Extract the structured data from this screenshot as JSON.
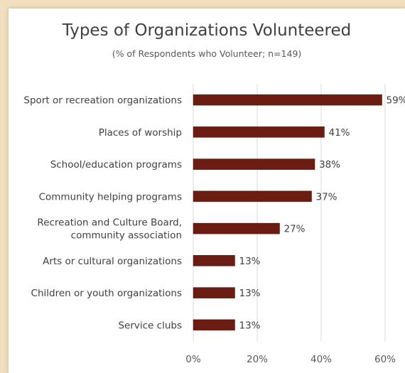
{
  "chart_data": {
    "type": "bar",
    "orientation": "horizontal",
    "title": "Types of Organizations Volunteered",
    "subtitle": "(% of Respondents who Volunteer; n=149)",
    "categories": [
      "Sport or recreation organizations",
      "Places of worship",
      "School/education programs",
      "Community helping programs",
      "Recreation and Culture Board, community association",
      "Arts or cultural organizations",
      "Children or youth organizations",
      "Service clubs"
    ],
    "category_lines": [
      [
        "Sport or recreation organizations"
      ],
      [
        "Places of worship"
      ],
      [
        "School/education programs"
      ],
      [
        "Community helping programs"
      ],
      [
        "Recreation and Culture Board,",
        "community association"
      ],
      [
        "Arts or cultural organizations"
      ],
      [
        "Children or youth organizations"
      ],
      [
        "Service clubs"
      ]
    ],
    "values": [
      59,
      41,
      38,
      37,
      27,
      13,
      13,
      13
    ],
    "value_labels": [
      "59%",
      "41%",
      "38%",
      "37%",
      "27%",
      "13%",
      "13%",
      "13%"
    ],
    "xlim": [
      0,
      60
    ],
    "x_ticks": [
      0,
      20,
      40,
      60
    ],
    "x_tick_labels": [
      "0%",
      "20%",
      "40%",
      "60%"
    ],
    "grid": "vertical",
    "legend": "none",
    "colors": {
      "bar": "#6b1d12",
      "bar_stroke": "#4a120a",
      "grid": "#d9d9d9",
      "background": "#f2dfbf"
    }
  }
}
